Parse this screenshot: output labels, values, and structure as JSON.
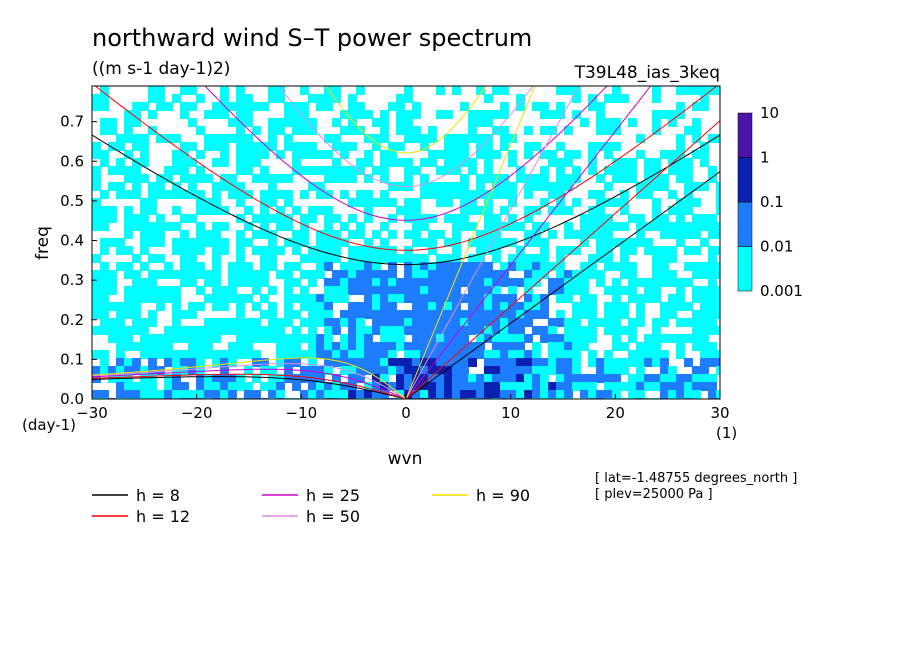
{
  "chart_data": {
    "type": "heatmap",
    "title": "northward wind S–T power spectrum",
    "subtitle": "((m s-1 day-1)2)",
    "run_label": "T39L48_ias_3keq",
    "xlabel": "wvn",
    "ylabel": "freq",
    "x_unit_label": "(1)",
    "y_unit_label": "(day-1)",
    "xlim": [
      -30,
      30
    ],
    "ylim": [
      0,
      0.79
    ],
    "xticks": [
      -30,
      -20,
      -10,
      0,
      10,
      20,
      30
    ],
    "xtick_labels": [
      "−30",
      "−20",
      "−10",
      "0",
      "10",
      "20",
      "30"
    ],
    "yticks": [
      0.0,
      0.1,
      0.2,
      0.3,
      0.4,
      0.5,
      0.6,
      0.7
    ],
    "ytick_labels": [
      "0.0",
      "0.1",
      "0.2",
      "0.3",
      "0.4",
      "0.5",
      "0.6",
      "0.7"
    ],
    "colorbar": {
      "scale": "log",
      "levels": [
        0.001,
        0.01,
        0.1,
        1,
        10
      ],
      "labels": [
        "0.001",
        "0.01",
        "0.1",
        "1",
        "10"
      ],
      "colors": [
        "#00ffff",
        "#1e7dff",
        "#0a20b0",
        "#4a14a8"
      ]
    },
    "power_field_description_levels": {
      "background_level": 0.001,
      "bulk_level": 0.01,
      "peak_region_x": [
        -5,
        12
      ],
      "peak_region_y": [
        0,
        0.3
      ],
      "peak_level": 0.1
    },
    "series": [
      {
        "name": "h =  8",
        "equivalent_depth_m": 8,
        "color": "#000000"
      },
      {
        "name": "h = 12",
        "equivalent_depth_m": 12,
        "color": "#ff0000"
      },
      {
        "name": "h = 25",
        "equivalent_depth_m": 25,
        "color": "#cc00cc"
      },
      {
        "name": "h = 50",
        "equivalent_depth_m": 50,
        "color": "#e08ce0"
      },
      {
        "name": "h = 90",
        "equivalent_depth_m": 90,
        "color": "#f0e000"
      }
    ],
    "annotations": [
      "[ lat=-1.48755 degrees_north ]",
      "[ plev=25000 Pa ]"
    ]
  }
}
